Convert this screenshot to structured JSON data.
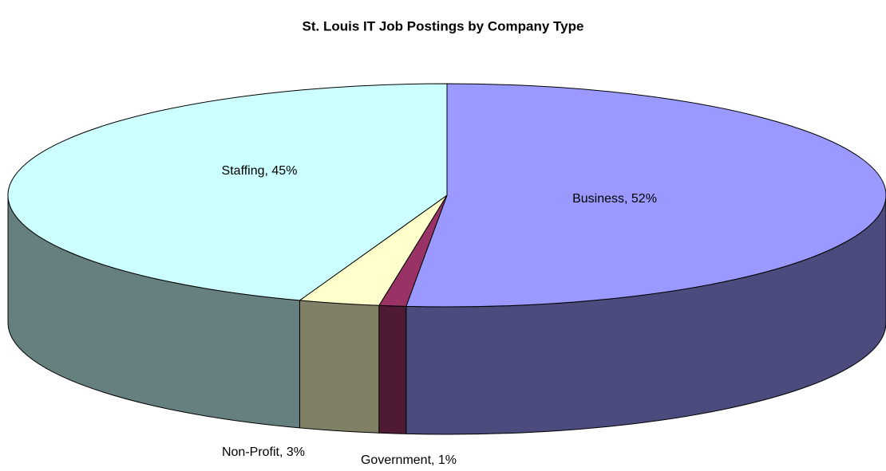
{
  "chart_data": {
    "type": "pie",
    "title": "St. Louis IT Job Postings by Company Type",
    "values": [
      52,
      1,
      3,
      45
    ],
    "value_labels": [
      "Business, 52%",
      "Government, 1%",
      "Non-Profit, 3%",
      "Staffing, 45%"
    ],
    "colors": [
      "#9999ff",
      "#993366",
      "#ffffcc",
      "#ccffff"
    ],
    "side_colors": [
      "#4b4b7d",
      "#4f1a33",
      "#808066",
      "#668080"
    ]
  }
}
